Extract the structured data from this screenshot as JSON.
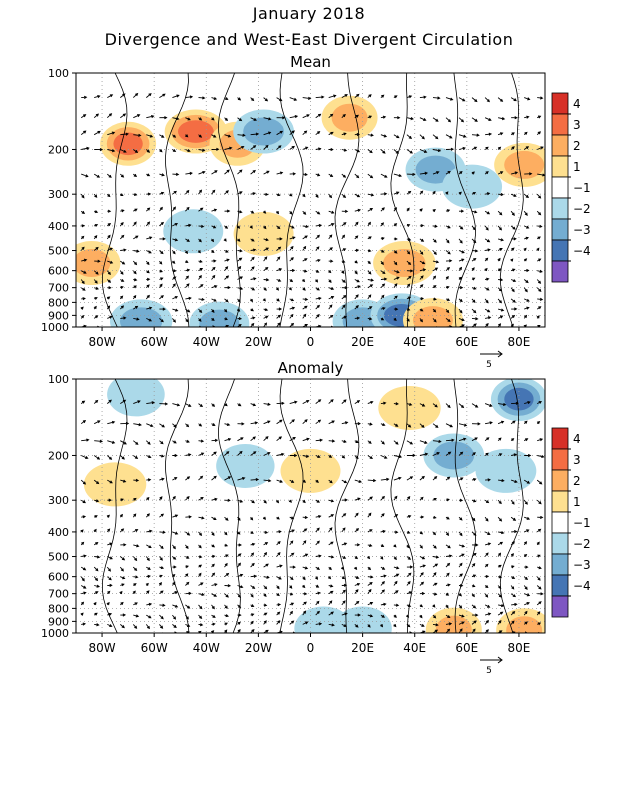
{
  "title": "January 2018",
  "subtitle": "Divergence and West-East Divergent Circulation",
  "colors": {
    "warm": [
      "#fee090",
      "#fdae61",
      "#f46d43",
      "#d73027"
    ],
    "cool": [
      "#abd9e9",
      "#74add1",
      "#4575b4",
      "#7e57c2"
    ],
    "contour": "#000000",
    "grid": "#999999"
  },
  "chart_data": [
    {
      "type": "heatmap",
      "title": "Mean",
      "xlabel": "",
      "ylabel": "",
      "x_ticks": [
        "80W",
        "60W",
        "40W",
        "20W",
        "0",
        "20E",
        "40E",
        "60E",
        "80E"
      ],
      "x_tick_values": [
        -80,
        -60,
        -40,
        -20,
        0,
        20,
        40,
        60,
        80
      ],
      "xlim": [
        -90,
        90
      ],
      "y_ticks": [
        "100",
        "200",
        "300",
        "400",
        "500",
        "600",
        "700",
        "800",
        "900",
        "1000"
      ],
      "y_tick_values": [
        100,
        200,
        300,
        400,
        500,
        600,
        700,
        800,
        900,
        1000
      ],
      "ylim": [
        1000,
        100
      ],
      "y_scale": "log",
      "grid": true,
      "colorbar": {
        "labels": [
          "4",
          "3",
          "2",
          "1",
          "−1",
          "−2",
          "−3",
          "−4"
        ]
      },
      "vector_reference": "5",
      "blobs": [
        {
          "lon": -70,
          "p": 190,
          "value": 3.0
        },
        {
          "lon": -44,
          "p": 170,
          "value": 3.8
        },
        {
          "lon": -28,
          "p": 190,
          "value": 2.0
        },
        {
          "lon": -18,
          "p": 170,
          "value": -2.6
        },
        {
          "lon": 15,
          "p": 150,
          "value": 2.0
        },
        {
          "lon": 48,
          "p": 240,
          "value": -2.5
        },
        {
          "lon": 62,
          "p": 280,
          "value": -1.5
        },
        {
          "lon": 82,
          "p": 230,
          "value": 2.5
        },
        {
          "lon": -84,
          "p": 560,
          "value": 2.2
        },
        {
          "lon": 36,
          "p": 560,
          "value": 2.8
        },
        {
          "lon": -18,
          "p": 430,
          "value": 1.5
        },
        {
          "lon": -45,
          "p": 420,
          "value": -1.5
        },
        {
          "lon": -65,
          "p": 950,
          "value": -2.8
        },
        {
          "lon": -35,
          "p": 970,
          "value": -2.5
        },
        {
          "lon": 20,
          "p": 950,
          "value": -2.5
        },
        {
          "lon": 35,
          "p": 900,
          "value": -3.8
        },
        {
          "lon": 47,
          "p": 940,
          "value": 2.5
        }
      ]
    },
    {
      "type": "heatmap",
      "title": "Anomaly",
      "xlabel": "",
      "ylabel": "",
      "x_ticks": [
        "80W",
        "60W",
        "40W",
        "20W",
        "0",
        "20E",
        "40E",
        "60E",
        "80E"
      ],
      "x_tick_values": [
        -80,
        -60,
        -40,
        -20,
        0,
        20,
        40,
        60,
        80
      ],
      "xlim": [
        -90,
        90
      ],
      "y_ticks": [
        "100",
        "200",
        "300",
        "400",
        "500",
        "600",
        "700",
        "800",
        "900",
        "1000"
      ],
      "y_tick_values": [
        100,
        200,
        300,
        400,
        500,
        600,
        700,
        800,
        900,
        1000
      ],
      "ylim": [
        1000,
        100
      ],
      "y_scale": "log",
      "grid": true,
      "colorbar": {
        "labels": [
          "4",
          "3",
          "2",
          "1",
          "−1",
          "−2",
          "−3",
          "−4"
        ]
      },
      "vector_reference": "5",
      "blobs": [
        {
          "lon": -75,
          "p": 260,
          "value": 1.8
        },
        {
          "lon": -67,
          "p": 115,
          "value": -1.2
        },
        {
          "lon": -25,
          "p": 220,
          "value": -1.3
        },
        {
          "lon": 0,
          "p": 230,
          "value": 1.5
        },
        {
          "lon": 38,
          "p": 130,
          "value": 1.8
        },
        {
          "lon": 55,
          "p": 200,
          "value": -2.6
        },
        {
          "lon": 80,
          "p": 120,
          "value": -3.0
        },
        {
          "lon": 75,
          "p": 230,
          "value": -1.6
        },
        {
          "lon": 5,
          "p": 960,
          "value": -1.3
        },
        {
          "lon": 20,
          "p": 960,
          "value": -1.3
        },
        {
          "lon": 55,
          "p": 970,
          "value": 2.0
        },
        {
          "lon": 82,
          "p": 975,
          "value": 2.0
        }
      ]
    }
  ]
}
